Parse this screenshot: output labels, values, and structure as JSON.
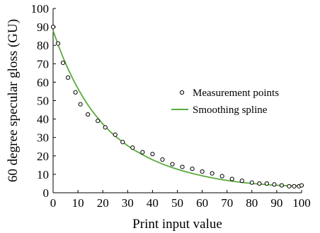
{
  "chart_data": {
    "type": "scatter",
    "title": "",
    "xlabel": "Print input value",
    "ylabel": "60 degree specular gloss (GU)",
    "xlim": [
      0,
      100
    ],
    "ylim": [
      0,
      100
    ],
    "xticks": [
      0,
      10,
      20,
      30,
      40,
      50,
      60,
      70,
      80,
      90,
      100
    ],
    "yticks": [
      0,
      10,
      20,
      30,
      40,
      50,
      60,
      70,
      80,
      90,
      100
    ],
    "grid": false,
    "legend": {
      "position": "center-right",
      "entries": [
        "Measurement points",
        "Smoothing spline"
      ]
    },
    "series": [
      {
        "name": "Measurement points",
        "kind": "scatter",
        "marker": "open-circle",
        "color": "#000000",
        "x": [
          0,
          2,
          4,
          6,
          9,
          11,
          14,
          18,
          21,
          25,
          28,
          32,
          36,
          40,
          44,
          48,
          52,
          56,
          60,
          64,
          68,
          72,
          76,
          80,
          83,
          86,
          89,
          92,
          95,
          97,
          99,
          100
        ],
        "y": [
          90,
          81,
          70.5,
          62.5,
          54.5,
          48,
          42.5,
          39,
          35.5,
          31.5,
          27.5,
          24.5,
          22,
          21,
          18,
          15.5,
          14,
          13,
          11.5,
          10.5,
          9,
          7.5,
          6.5,
          5.5,
          5,
          5,
          4.5,
          4,
          3.5,
          3.5,
          3.5,
          4
        ]
      },
      {
        "name": "Smoothing spline",
        "kind": "line",
        "color": "#5aab3c",
        "x": [
          0,
          2,
          4,
          6,
          8,
          10,
          12,
          14,
          16,
          18,
          20,
          22,
          24,
          26,
          28,
          30,
          33,
          36,
          40,
          44,
          48,
          52,
          56,
          60,
          64,
          68,
          72,
          76,
          80,
          84,
          88,
          92,
          96,
          100
        ],
        "y": [
          88,
          80.4,
          73.5,
          67.2,
          61.6,
          56.5,
          51.9,
          47.7,
          43.9,
          40.5,
          37.3,
          34.5,
          31.9,
          29.6,
          27.5,
          25.5,
          22.9,
          20.6,
          17.9,
          15.6,
          13.6,
          11.9,
          10.5,
          9.2,
          8.1,
          7.1,
          6.3,
          5.6,
          5,
          4.6,
          4.2,
          3.9,
          3.8,
          3.8
        ]
      }
    ]
  }
}
